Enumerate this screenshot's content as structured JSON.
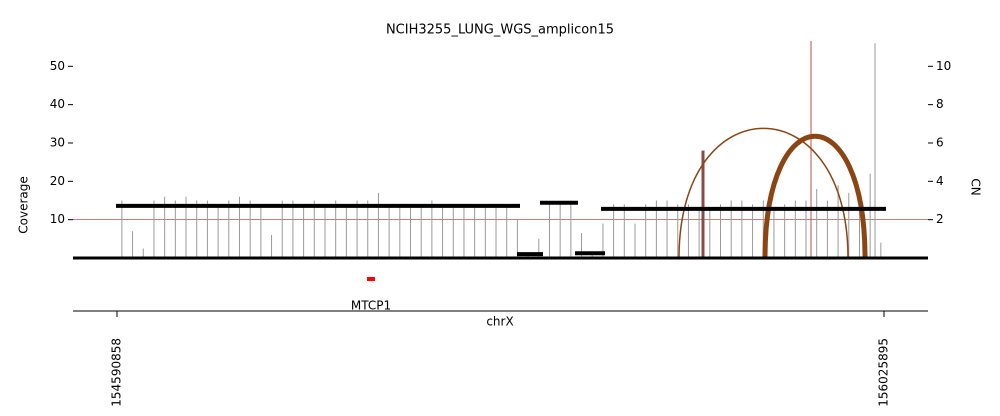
{
  "chart_data": {
    "type": "amplicon",
    "title": "NCIH3255_LUNG_WGS_amplicon15",
    "xlabel": "chrX",
    "ylabel": "Coverage",
    "y2label": "CN",
    "xlim": [
      154508534,
      156108219
    ],
    "xticks": [
      154590858,
      156025895
    ],
    "ylim": [
      0,
      56.6
    ],
    "yticks": [
      10,
      20,
      30,
      40,
      50
    ],
    "y2lim": [
      0,
      11.32
    ],
    "y2ticks": [
      2,
      4,
      6,
      8,
      10
    ],
    "coverage": {
      "color": "#999999",
      "x": [
        154600000,
        154620000,
        154640000,
        154660000,
        154680000,
        154700000,
        154720000,
        154740000,
        154760000,
        154780000,
        154800000,
        154820000,
        154840000,
        154860000,
        154880000,
        154900000,
        154920000,
        154940000,
        154960000,
        154980000,
        155000000,
        155020000,
        155040000,
        155060000,
        155080000,
        155100000,
        155120000,
        155140000,
        155160000,
        155180000,
        155200000,
        155220000,
        155240000,
        155260000,
        155280000,
        155300000,
        155320000,
        155340000,
        155360000,
        155380000,
        155400000,
        155420000,
        155440000,
        155460000,
        155480000,
        155500000,
        155520000,
        155540000,
        155560000,
        155580000,
        155600000,
        155620000,
        155640000,
        155660000,
        155680000,
        155687264,
        155700000,
        155720000,
        155740000,
        155760000,
        155780000,
        155800000,
        155820000,
        155840000,
        155860000,
        155880000,
        155900000,
        155920000,
        155940000,
        155960000,
        155980000,
        156000000,
        156009076,
        156020000
      ],
      "values": [
        15,
        7,
        2.5,
        15,
        16,
        15,
        16,
        15,
        15,
        14,
        15,
        16,
        15,
        14,
        6,
        15,
        15,
        14,
        15,
        14,
        15,
        14,
        15,
        15,
        17,
        14,
        14,
        14,
        14,
        15,
        14,
        13,
        14,
        14,
        14,
        14,
        14,
        10,
        1.5,
        5,
        14,
        14,
        15,
        6.5,
        1,
        9,
        14,
        14,
        9,
        14,
        15,
        15,
        14,
        14,
        13,
        28,
        13,
        14,
        15,
        15,
        14,
        15,
        13,
        14,
        15,
        15,
        18,
        15,
        19,
        17,
        15,
        22,
        56,
        4
      ]
    },
    "segments": {
      "color": "#000000",
      "start": [
        154588987,
        155339258,
        155382291,
        155447776,
        155496422
      ],
      "end": [
        155344871,
        155387904,
        155453389,
        155503906,
        156029657
      ],
      "values": [
        2.72,
        0.2,
        2.88,
        0.25,
        2.56
      ]
    },
    "arcs": {
      "color": "#8b4513",
      "linewidth": [
        1.5,
        5
      ],
      "start": [
        155642360,
        155803266
      ],
      "end": [
        155958559,
        155990366
      ]
    },
    "breakpoint_lines": {
      "color": "#c0504d",
      "x": [
        155889332
      ]
    },
    "reference_line": {
      "color": "#c0504d",
      "value": 10
    },
    "genes": [
      {
        "name": "MTCP1",
        "start": 155058608,
        "end": 155073576,
        "color": "#ff0000"
      }
    ]
  }
}
